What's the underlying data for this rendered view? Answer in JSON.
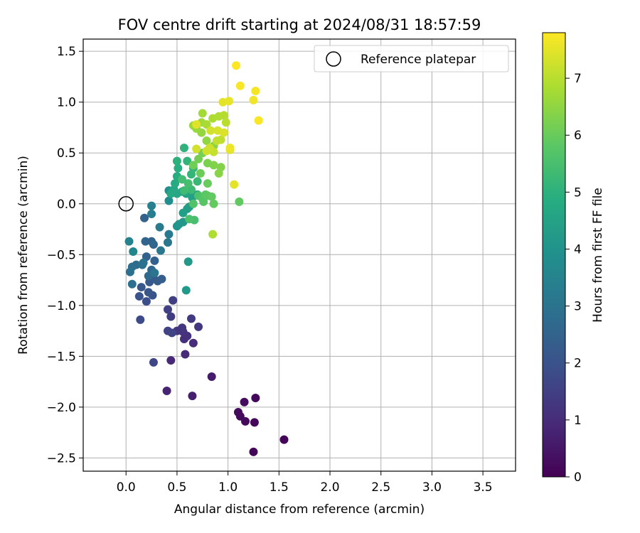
{
  "chart_data": {
    "type": "scatter",
    "title": "FOV centre drift starting at 2024/08/31 18:57:59",
    "xlabel": "Angular distance from reference (arcmin)",
    "ylabel": "Rotation from reference (arcmin)",
    "xlim": [
      -0.42,
      3.82
    ],
    "ylim": [
      -2.63,
      1.62
    ],
    "xticks": [
      0.0,
      0.5,
      1.0,
      1.5,
      2.0,
      2.5,
      3.0,
      3.5
    ],
    "xtick_labels": [
      "0.0",
      "0.5",
      "1.0",
      "1.5",
      "2.0",
      "2.5",
      "3.0",
      "3.5"
    ],
    "yticks": [
      -2.5,
      -2.0,
      -1.5,
      -1.0,
      -0.5,
      0.0,
      0.5,
      1.0,
      1.5
    ],
    "ytick_labels": [
      "−2.5",
      "−2.0",
      "−1.5",
      "−1.0",
      "−0.5",
      "0.0",
      "0.5",
      "1.0",
      "1.5"
    ],
    "grid": true,
    "colormap": "viridis",
    "colorbar": {
      "label": "Hours from first FF file",
      "range": [
        0,
        7.8
      ],
      "ticks": [
        0,
        1,
        2,
        3,
        4,
        5,
        6,
        7
      ],
      "tick_labels": [
        "0",
        "1",
        "2",
        "3",
        "4",
        "5",
        "6",
        "7"
      ]
    },
    "legend": {
      "placement": "top-right",
      "entries": [
        "Reference platepar"
      ]
    },
    "reference_point": {
      "x": 0.0,
      "y": 0.0
    },
    "points": [
      [
        1.55,
        -2.32,
        0.1
      ],
      [
        1.25,
        -2.44,
        0.1
      ],
      [
        1.27,
        -1.91,
        0.15
      ],
      [
        1.26,
        -2.15,
        0.15
      ],
      [
        1.17,
        -2.14,
        0.2
      ],
      [
        1.12,
        -2.09,
        0.2
      ],
      [
        1.1,
        -2.05,
        0.25
      ],
      [
        1.16,
        -1.95,
        0.25
      ],
      [
        0.84,
        -1.7,
        0.6
      ],
      [
        0.65,
        -1.89,
        0.7
      ],
      [
        0.4,
        -1.84,
        0.8
      ],
      [
        0.44,
        -1.54,
        0.9
      ],
      [
        0.58,
        -1.48,
        0.95
      ],
      [
        0.66,
        -1.37,
        1.0
      ],
      [
        0.57,
        -1.33,
        1.05
      ],
      [
        0.6,
        -1.3,
        1.1
      ],
      [
        0.56,
        -1.26,
        1.15
      ],
      [
        0.5,
        -1.25,
        1.2
      ],
      [
        0.55,
        -1.22,
        1.25
      ],
      [
        0.71,
        -1.21,
        1.3
      ],
      [
        0.64,
        -1.13,
        1.35
      ],
      [
        0.44,
        -1.11,
        1.4
      ],
      [
        0.46,
        -0.95,
        1.45
      ],
      [
        0.41,
        -1.04,
        1.5
      ],
      [
        0.41,
        -1.25,
        1.55
      ],
      [
        0.45,
        -1.27,
        1.6
      ],
      [
        0.27,
        -1.56,
        1.65
      ],
      [
        0.14,
        -1.14,
        1.8
      ],
      [
        0.2,
        -0.96,
        1.9
      ],
      [
        0.13,
        -0.91,
        2.0
      ],
      [
        0.26,
        -0.9,
        2.05
      ],
      [
        0.22,
        -0.87,
        2.1
      ],
      [
        0.15,
        -0.82,
        2.15
      ],
      [
        0.23,
        -0.77,
        2.2
      ],
      [
        0.27,
        -0.73,
        2.25
      ],
      [
        0.31,
        -0.76,
        2.3
      ],
      [
        0.35,
        -0.74,
        2.35
      ],
      [
        0.28,
        -0.56,
        2.4
      ],
      [
        0.2,
        -0.52,
        2.45
      ],
      [
        0.25,
        -0.37,
        2.5
      ],
      [
        0.18,
        -0.14,
        2.5
      ],
      [
        0.19,
        -0.37,
        2.55
      ],
      [
        0.27,
        -0.4,
        2.6
      ],
      [
        0.25,
        -0.65,
        2.65
      ],
      [
        0.22,
        -0.71,
        2.7
      ],
      [
        0.1,
        -0.6,
        2.75
      ],
      [
        0.06,
        -0.62,
        2.8
      ],
      [
        0.04,
        -0.67,
        2.85
      ],
      [
        0.06,
        -0.79,
        2.85
      ],
      [
        0.16,
        -0.6,
        2.9
      ],
      [
        0.17,
        -0.58,
        2.95
      ],
      [
        0.28,
        -0.68,
        3.05
      ],
      [
        0.34,
        -0.46,
        3.1
      ],
      [
        0.41,
        -0.38,
        3.15
      ],
      [
        0.42,
        -0.3,
        3.2
      ],
      [
        0.33,
        -0.23,
        3.25
      ],
      [
        0.25,
        -0.1,
        3.3
      ],
      [
        0.25,
        -0.02,
        3.4
      ],
      [
        0.03,
        -0.37,
        3.45
      ],
      [
        0.07,
        -0.47,
        3.6
      ],
      [
        0.42,
        0.03,
        3.8
      ],
      [
        0.42,
        0.13,
        3.9
      ],
      [
        0.5,
        -0.22,
        4.0
      ],
      [
        0.52,
        -0.2,
        4.1
      ],
      [
        0.56,
        -0.18,
        4.15
      ],
      [
        0.61,
        -0.57,
        4.2
      ],
      [
        0.59,
        -0.85,
        4.25
      ],
      [
        0.6,
        -0.05,
        4.3
      ],
      [
        0.62,
        -0.03,
        4.35
      ],
      [
        0.56,
        -0.09,
        4.4
      ],
      [
        0.65,
        0.06,
        4.45
      ],
      [
        0.7,
        0.09,
        4.5
      ],
      [
        0.59,
        0.1,
        4.55
      ],
      [
        0.55,
        0.12,
        4.6
      ],
      [
        0.5,
        0.1,
        4.65
      ],
      [
        0.47,
        0.14,
        4.7
      ],
      [
        0.44,
        0.1,
        4.75
      ],
      [
        0.48,
        0.2,
        4.8
      ],
      [
        0.5,
        0.27,
        4.85
      ],
      [
        0.51,
        0.35,
        4.9
      ],
      [
        0.5,
        0.42,
        5.0
      ],
      [
        0.57,
        0.55,
        5.05
      ],
      [
        0.6,
        0.42,
        5.1
      ],
      [
        0.64,
        0.29,
        5.15
      ],
      [
        0.66,
        0.35,
        5.2
      ],
      [
        0.7,
        0.22,
        5.25
      ],
      [
        0.64,
        0.14,
        5.3
      ],
      [
        0.57,
        0.13,
        5.35
      ],
      [
        0.55,
        0.24,
        5.4
      ],
      [
        0.61,
        0.2,
        5.45
      ],
      [
        0.67,
        -0.16,
        5.5
      ],
      [
        0.62,
        -0.15,
        5.55
      ],
      [
        0.71,
        0.08,
        5.6
      ],
      [
        0.66,
        0.0,
        5.65
      ],
      [
        0.75,
        0.05,
        5.7
      ],
      [
        0.76,
        0.02,
        5.75
      ],
      [
        0.78,
        0.09,
        5.8
      ],
      [
        0.8,
        0.08,
        5.85
      ],
      [
        0.84,
        0.07,
        5.9
      ],
      [
        0.86,
        0.0,
        5.95
      ],
      [
        0.8,
        0.2,
        6.0
      ],
      [
        0.73,
        0.3,
        6.05
      ],
      [
        0.66,
        0.38,
        6.1
      ],
      [
        0.71,
        0.44,
        6.15
      ],
      [
        0.75,
        0.5,
        6.2
      ],
      [
        0.8,
        0.4,
        6.25
      ],
      [
        0.86,
        0.38,
        6.3
      ],
      [
        0.93,
        0.36,
        6.35
      ],
      [
        0.91,
        0.3,
        6.4
      ],
      [
        0.86,
        0.57,
        6.45
      ],
      [
        0.79,
        0.62,
        6.5
      ],
      [
        0.74,
        0.7,
        6.55
      ],
      [
        0.69,
        0.74,
        6.6
      ],
      [
        0.66,
        0.77,
        6.65
      ],
      [
        0.74,
        0.8,
        6.7
      ],
      [
        0.75,
        0.89,
        6.75
      ],
      [
        0.79,
        0.78,
        6.8
      ],
      [
        0.85,
        0.84,
        6.85
      ],
      [
        0.91,
        0.86,
        6.9
      ],
      [
        0.96,
        0.87,
        6.95
      ],
      [
        0.98,
        0.8,
        7.0
      ],
      [
        0.93,
        0.63,
        7.05
      ],
      [
        0.89,
        0.62,
        7.1
      ],
      [
        0.86,
        0.51,
        7.15
      ],
      [
        0.82,
        0.55,
        7.2
      ],
      [
        0.79,
        0.52,
        7.25
      ],
      [
        0.83,
        0.72,
        7.3
      ],
      [
        0.9,
        0.72,
        7.35
      ],
      [
        0.96,
        0.7,
        7.4
      ],
      [
        1.02,
        0.53,
        7.45
      ],
      [
        1.06,
        0.19,
        7.5
      ],
      [
        1.11,
        0.02,
        5.9
      ],
      [
        0.85,
        -0.3,
        6.9
      ],
      [
        0.69,
        0.54,
        7.3
      ],
      [
        0.69,
        0.78,
        7.45
      ],
      [
        0.95,
        1.0,
        7.5
      ],
      [
        1.01,
        1.01,
        7.55
      ],
      [
        1.02,
        0.55,
        7.6
      ],
      [
        1.25,
        1.02,
        7.65
      ],
      [
        1.27,
        1.11,
        7.7
      ],
      [
        1.12,
        1.16,
        7.75
      ],
      [
        1.3,
        0.82,
        7.75
      ],
      [
        1.08,
        1.36,
        7.8
      ]
    ]
  }
}
